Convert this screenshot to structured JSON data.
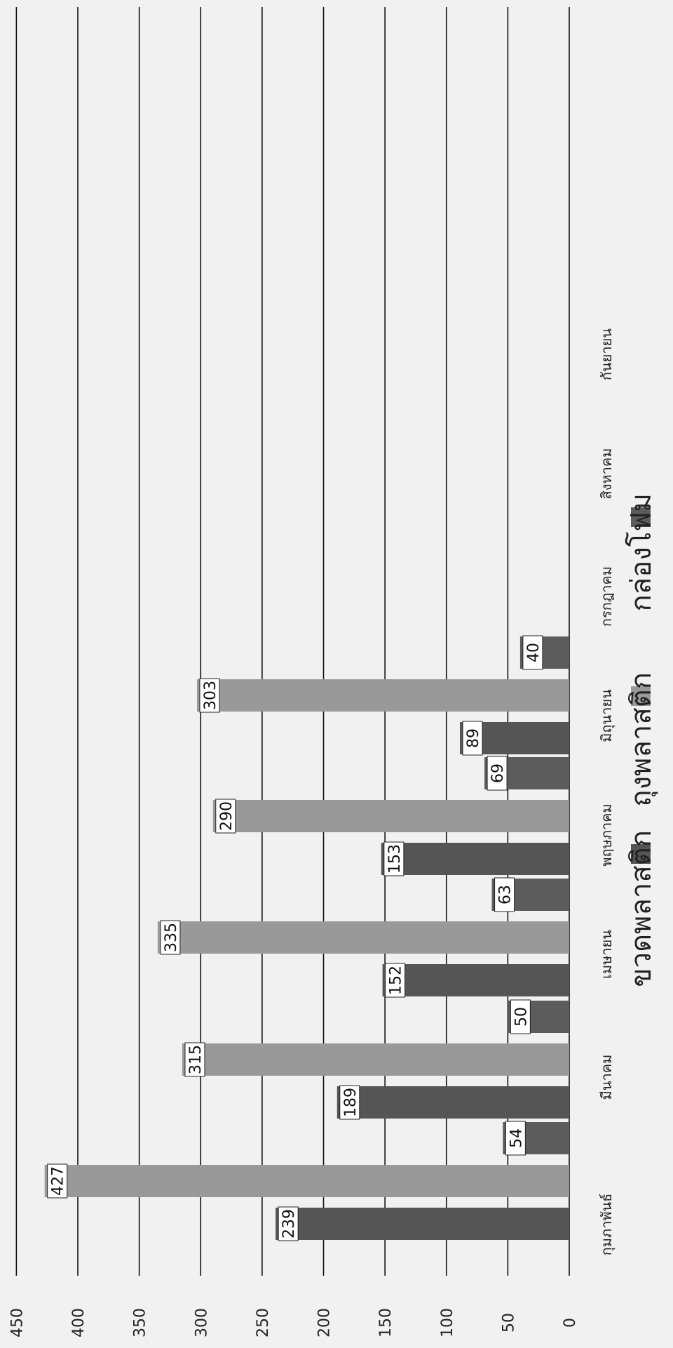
{
  "chart_data": {
    "type": "bar",
    "orientation": "vertical-rotated-90",
    "categories": [
      "กุมภาพันธ์",
      "มีนาคม",
      "เมษายน",
      "พฤษภาคม",
      "มิถุนายน",
      "กรกฎาคม",
      "สิงหาคม",
      "กันยายน"
    ],
    "series": [
      {
        "name": "ขวดพลาสติก",
        "color": "#555555",
        "values": [
          239,
          189,
          152,
          153,
          89,
          null,
          null,
          null
        ]
      },
      {
        "name": "ถุงพลาสติก",
        "color": "#999999",
        "values": [
          427,
          315,
          335,
          290,
          303,
          null,
          null,
          null
        ]
      },
      {
        "name": "กล่องโฟม",
        "color": "#5c5c5c",
        "values": [
          54,
          50,
          63,
          69,
          40,
          null,
          null,
          null
        ]
      }
    ],
    "ylim": [
      0,
      450
    ],
    "yticks": [
      0,
      50,
      100,
      150,
      200,
      250,
      300,
      350,
      400,
      450
    ],
    "grid": true,
    "legend_position": "bottom",
    "data_labels": true
  }
}
